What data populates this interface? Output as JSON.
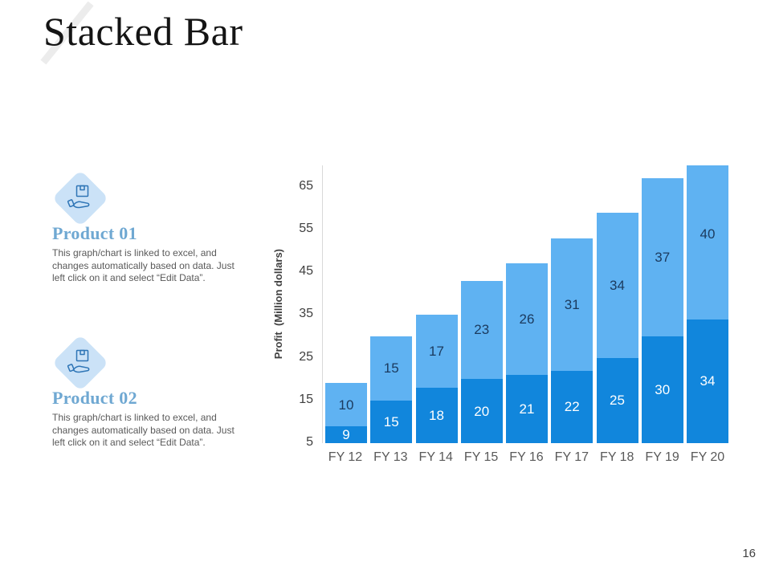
{
  "slide": {
    "title": "Stacked Bar",
    "page_number": "16"
  },
  "products": [
    {
      "heading": "Product 01",
      "description": "This graph/chart is linked to excel, and changes automatically based on data. Just left click on it and select “Edit Data”."
    },
    {
      "heading": "Product 02",
      "description": "This graph/chart is linked to excel, and changes automatically based on data. Just left click on it and select “Edit Data”."
    }
  ],
  "chart_data": {
    "type": "bar",
    "stacked": true,
    "categories": [
      "FY 12",
      "FY 13",
      "FY 14",
      "FY 15",
      "FY 16",
      "FY 17",
      "FY 18",
      "FY 19",
      "FY 20"
    ],
    "series": [
      {
        "name": "bottom-segment",
        "color": "#1186dc",
        "label_color": "#ffffff",
        "values": [
          9,
          15,
          18,
          20,
          21,
          22,
          25,
          30,
          34
        ]
      },
      {
        "name": "top-segment",
        "color": "#5fb2f2",
        "label_color": "#1b3a5e",
        "values": [
          10,
          15,
          17,
          23,
          26,
          31,
          34,
          37,
          40
        ]
      }
    ],
    "title": "",
    "xlabel": "",
    "ylabel": "Profit  (Million dollars)",
    "yticks": [
      5,
      15,
      25,
      35,
      45,
      55,
      65
    ],
    "ymin": 5,
    "ymax": 70,
    "grid": false,
    "legend_position": "none",
    "bar_value_labels": true
  },
  "colors": {
    "bar_light_blue": "#5fb2f2",
    "bar_dark_blue": "#1186dc",
    "heading_blue": "#6fa8d2",
    "diamond_fill": "#cbe2f7",
    "icon_stroke": "#2e75b6",
    "body_text_gray": "#595959",
    "axis_text_gray": "#404040",
    "axis_line_gray": "#d9d9d9",
    "slash_gray": "#ececec"
  }
}
